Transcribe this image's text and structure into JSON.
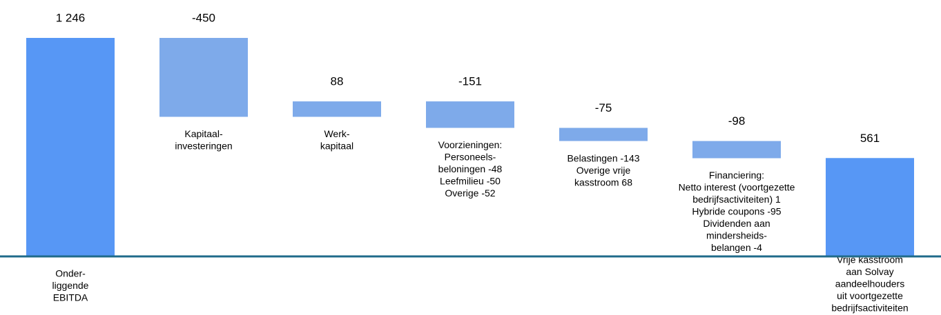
{
  "chart_data": {
    "type": "waterfall",
    "categories": [
      [
        "Onder-",
        "liggende",
        "EBITDA"
      ],
      [
        "Kapitaal-",
        "investeringen"
      ],
      [
        "Werk-",
        "kapitaal"
      ],
      [
        "Voorzieningen:",
        "Personeels-",
        "beloningen -48",
        "Leefmilieu -50",
        "Overige -52"
      ],
      [
        "Belastingen -143",
        "Overige vrije",
        "kasstroom 68"
      ],
      [
        "Financiering:",
        "Netto interest (voortgezette",
        "bedrijfsactiviteiten) 1",
        "Hybride coupons -95",
        "Dividenden aan",
        "mindersheids-",
        "belangen -4"
      ],
      [
        "Vrije kasstroom",
        "aan Solvay",
        "aandeelhouders",
        "uit voortgezette",
        "bedrijfsactiviteiten"
      ]
    ],
    "values": [
      1246,
      -450,
      88,
      -151,
      -75,
      -98,
      561
    ],
    "value_labels": [
      "1 246",
      "-450",
      "88",
      "-151",
      "-75",
      "-98",
      "561"
    ],
    "measure": [
      "absolute",
      "relative",
      "relative",
      "relative",
      "relative",
      "relative",
      "absolute"
    ],
    "colors": {
      "absolute": "#5797f5",
      "relative": "#7eaaea"
    },
    "axis_color": "#1f6b8a",
    "ylim": [
      0,
      1246
    ]
  }
}
